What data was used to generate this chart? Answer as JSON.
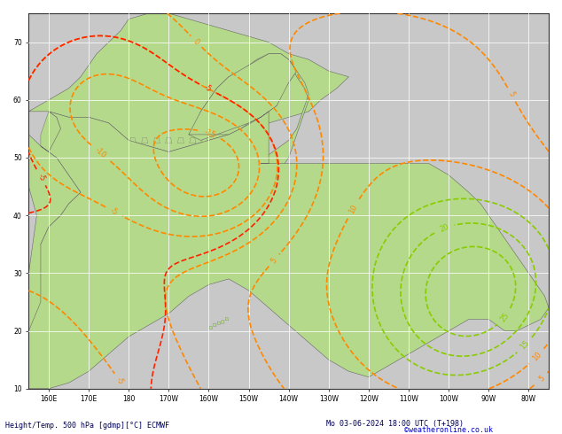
{
  "bottom_label": "Height/Temp. 500 hPa [gdmp][°C] ECMWF",
  "bottom_right": "Mo 03-06-2024 18:00 UTC (T+198)",
  "watermark": "©weatheronline.co.uk",
  "background_color": "#ffffff",
  "land_color": "#b5d98a",
  "ocean_color": "#c8c8c8",
  "grid_color": "#ffffff",
  "border_color": "#666666",
  "z500_color": "#000000",
  "temp_orange_color": "#ff8800",
  "temp_red_color": "#ff2200",
  "cyan_color": "#00bbbb",
  "yellow_green_color": "#88cc00",
  "fig_width": 6.34,
  "fig_height": 4.9,
  "dpi": 100,
  "bottom_label_color": "#000055",
  "watermark_color": "#0000cc",
  "xlim": [
    155,
    285
  ],
  "ylim": [
    10,
    75
  ],
  "xticks": [
    160,
    170,
    180,
    190,
    200,
    210,
    220,
    230,
    240,
    250,
    260,
    270,
    280
  ],
  "xtick_labels": [
    "160E",
    "170E",
    "180",
    "170W",
    "160W",
    "150W",
    "140W",
    "130W",
    "120W",
    "110W",
    "100W",
    "90W",
    "80W"
  ],
  "yticks": [
    10,
    20,
    30,
    40,
    50,
    60,
    70
  ],
  "ytick_labels": [
    "10",
    "20",
    "30",
    "40",
    "50",
    "60",
    "70"
  ]
}
